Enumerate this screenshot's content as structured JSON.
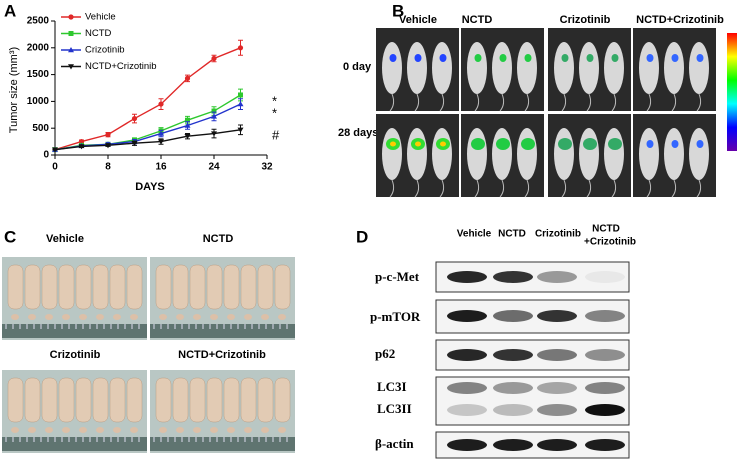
{
  "panel_labels": [
    "A",
    "B",
    "C",
    "D"
  ],
  "chart_data": {
    "type": "line",
    "x_label": "DAYS",
    "y_label": "Tumor size (mm³)",
    "x": [
      0,
      4,
      8,
      12,
      16,
      20,
      24,
      28
    ],
    "series": [
      {
        "name": "Vehicle",
        "color": "#e02828",
        "marker": "circle",
        "values": [
          100,
          250,
          380,
          680,
          950,
          1430,
          1800,
          2000
        ],
        "errors": [
          10,
          30,
          40,
          80,
          100,
          60,
          60,
          140
        ]
      },
      {
        "name": "NCTD",
        "color": "#2ec82e",
        "marker": "square",
        "values": [
          100,
          180,
          200,
          280,
          450,
          650,
          820,
          1120
        ],
        "errors": [
          10,
          20,
          30,
          40,
          60,
          70,
          80,
          110
        ]
      },
      {
        "name": "Crizotinib",
        "color": "#2233cc",
        "marker": "triangle",
        "values": [
          100,
          170,
          200,
          250,
          400,
          550,
          720,
          950
        ],
        "errors": [
          10,
          20,
          30,
          40,
          60,
          70,
          80,
          100
        ]
      },
      {
        "name": "NCTD+Crizotinib",
        "color": "#111111",
        "marker": "triangle-down",
        "values": [
          100,
          160,
          180,
          220,
          250,
          350,
          400,
          470
        ],
        "errors": [
          10,
          20,
          20,
          40,
          50,
          50,
          80,
          90
        ]
      }
    ],
    "xlim": [
      0,
      32
    ],
    "xticks": [
      0,
      8,
      16,
      24,
      32
    ],
    "ylim": [
      0,
      2500
    ],
    "yticks": [
      0,
      500,
      1000,
      1500,
      2000,
      2500
    ],
    "annotations": [
      "*",
      "*",
      "#"
    ]
  },
  "imaging": {
    "columns": [
      "Vehicle",
      "NCTD",
      "Crizotinib",
      "NCTD+Crizotinib"
    ],
    "rows": [
      "0 day",
      "28 days"
    ]
  },
  "tumor_photos": {
    "labels": [
      "Vehicle",
      "NCTD",
      "Crizotinib",
      "NCTD+Crizotinib"
    ]
  },
  "western_blot": {
    "columns": [
      "Vehicle",
      "NCTD",
      "Crizotinib",
      [
        "NCTD",
        "+Crizotinib"
      ]
    ],
    "rows": [
      "p-c-Met",
      "p-mTOR",
      "p62",
      "LC3I",
      "LC3II",
      "β-actin"
    ]
  }
}
